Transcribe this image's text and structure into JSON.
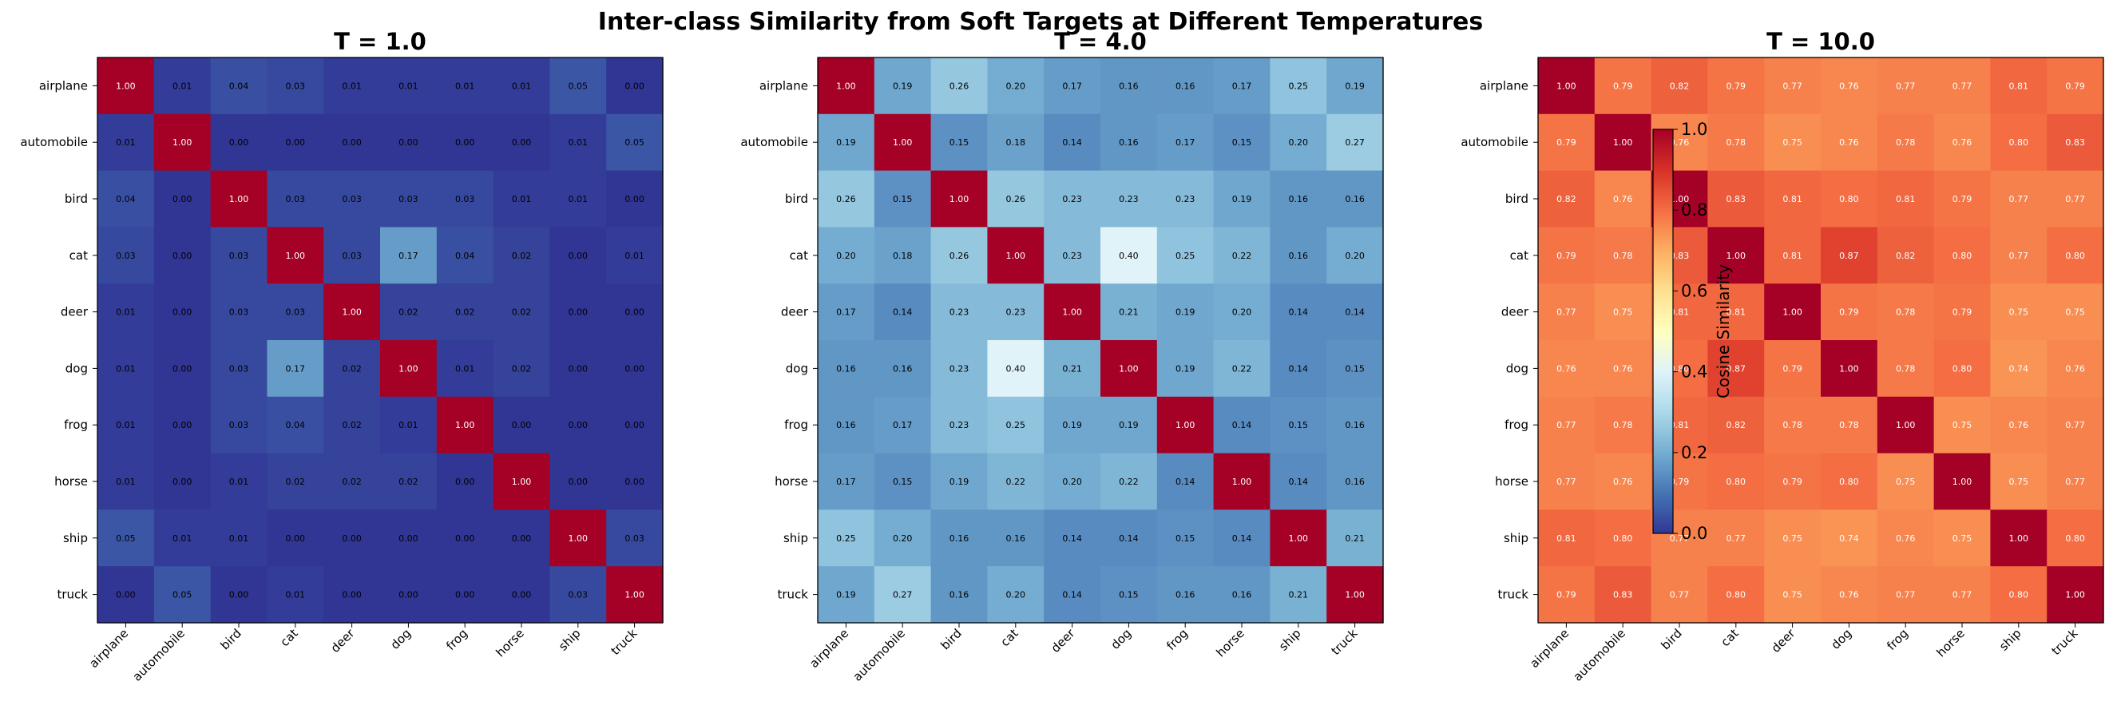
{
  "title": "Inter-class Similarity from Soft Targets at Different Temperatures",
  "colorbar": {
    "label": "Cosine Similarity",
    "ticks": [
      "0.0",
      "0.2",
      "0.4",
      "0.6",
      "0.8",
      "1.0"
    ],
    "range": [
      0,
      1
    ],
    "colormap": "RdYlBu_r"
  },
  "chart_data": [
    {
      "type": "heatmap",
      "title": "T = 1.0",
      "categories": [
        "airplane",
        "automobile",
        "bird",
        "cat",
        "deer",
        "dog",
        "frog",
        "horse",
        "ship",
        "truck"
      ],
      "values": [
        [
          1.0,
          0.01,
          0.04,
          0.03,
          0.01,
          0.01,
          0.01,
          0.01,
          0.05,
          0.0
        ],
        [
          0.01,
          1.0,
          0.0,
          0.0,
          0.0,
          0.0,
          0.0,
          0.0,
          0.01,
          0.05
        ],
        [
          0.04,
          0.0,
          1.0,
          0.03,
          0.03,
          0.03,
          0.03,
          0.01,
          0.01,
          0.0
        ],
        [
          0.03,
          0.0,
          0.03,
          1.0,
          0.03,
          0.17,
          0.04,
          0.02,
          0.0,
          0.01
        ],
        [
          0.01,
          0.0,
          0.03,
          0.03,
          1.0,
          0.02,
          0.02,
          0.02,
          0.0,
          0.0
        ],
        [
          0.01,
          0.0,
          0.03,
          0.17,
          0.02,
          1.0,
          0.01,
          0.02,
          0.0,
          0.0
        ],
        [
          0.01,
          0.0,
          0.03,
          0.04,
          0.02,
          0.01,
          1.0,
          0.0,
          0.0,
          0.0
        ],
        [
          0.01,
          0.0,
          0.01,
          0.02,
          0.02,
          0.02,
          0.0,
          1.0,
          0.0,
          0.0
        ],
        [
          0.05,
          0.01,
          0.01,
          0.0,
          0.0,
          0.0,
          0.0,
          0.0,
          1.0,
          0.03
        ],
        [
          0.0,
          0.05,
          0.0,
          0.01,
          0.0,
          0.0,
          0.0,
          0.0,
          0.03,
          1.0
        ]
      ]
    },
    {
      "type": "heatmap",
      "title": "T = 4.0",
      "categories": [
        "airplane",
        "automobile",
        "bird",
        "cat",
        "deer",
        "dog",
        "frog",
        "horse",
        "ship",
        "truck"
      ],
      "values": [
        [
          1.0,
          0.19,
          0.26,
          0.2,
          0.17,
          0.16,
          0.16,
          0.17,
          0.25,
          0.19
        ],
        [
          0.19,
          1.0,
          0.15,
          0.18,
          0.14,
          0.16,
          0.17,
          0.15,
          0.2,
          0.27
        ],
        [
          0.26,
          0.15,
          1.0,
          0.26,
          0.23,
          0.23,
          0.23,
          0.19,
          0.16,
          0.16
        ],
        [
          0.2,
          0.18,
          0.26,
          1.0,
          0.23,
          0.4,
          0.25,
          0.22,
          0.16,
          0.2
        ],
        [
          0.17,
          0.14,
          0.23,
          0.23,
          1.0,
          0.21,
          0.19,
          0.2,
          0.14,
          0.14
        ],
        [
          0.16,
          0.16,
          0.23,
          0.4,
          0.21,
          1.0,
          0.19,
          0.22,
          0.14,
          0.15
        ],
        [
          0.16,
          0.17,
          0.23,
          0.25,
          0.19,
          0.19,
          1.0,
          0.14,
          0.15,
          0.16
        ],
        [
          0.17,
          0.15,
          0.19,
          0.22,
          0.2,
          0.22,
          0.14,
          1.0,
          0.14,
          0.16
        ],
        [
          0.25,
          0.2,
          0.16,
          0.16,
          0.14,
          0.14,
          0.15,
          0.14,
          1.0,
          0.21
        ],
        [
          0.19,
          0.27,
          0.16,
          0.2,
          0.14,
          0.15,
          0.16,
          0.16,
          0.21,
          1.0
        ]
      ]
    },
    {
      "type": "heatmap",
      "title": "T = 10.0",
      "categories": [
        "airplane",
        "automobile",
        "bird",
        "cat",
        "deer",
        "dog",
        "frog",
        "horse",
        "ship",
        "truck"
      ],
      "values": [
        [
          1.0,
          0.79,
          0.82,
          0.79,
          0.77,
          0.76,
          0.77,
          0.77,
          0.81,
          0.79
        ],
        [
          0.79,
          1.0,
          0.76,
          0.78,
          0.75,
          0.76,
          0.78,
          0.76,
          0.8,
          0.83
        ],
        [
          0.82,
          0.76,
          1.0,
          0.83,
          0.81,
          0.8,
          0.81,
          0.79,
          0.77,
          0.77
        ],
        [
          0.79,
          0.78,
          0.83,
          1.0,
          0.81,
          0.87,
          0.82,
          0.8,
          0.77,
          0.8
        ],
        [
          0.77,
          0.75,
          0.81,
          0.81,
          1.0,
          0.79,
          0.78,
          0.79,
          0.75,
          0.75
        ],
        [
          0.76,
          0.76,
          0.8,
          0.87,
          0.79,
          1.0,
          0.78,
          0.8,
          0.74,
          0.76
        ],
        [
          0.77,
          0.78,
          0.81,
          0.82,
          0.78,
          0.78,
          1.0,
          0.75,
          0.76,
          0.77
        ],
        [
          0.77,
          0.76,
          0.79,
          0.8,
          0.79,
          0.8,
          0.75,
          1.0,
          0.75,
          0.77
        ],
        [
          0.81,
          0.8,
          0.77,
          0.77,
          0.75,
          0.74,
          0.76,
          0.75,
          1.0,
          0.8
        ],
        [
          0.79,
          0.83,
          0.77,
          0.8,
          0.75,
          0.76,
          0.77,
          0.77,
          0.8,
          1.0
        ]
      ]
    }
  ]
}
